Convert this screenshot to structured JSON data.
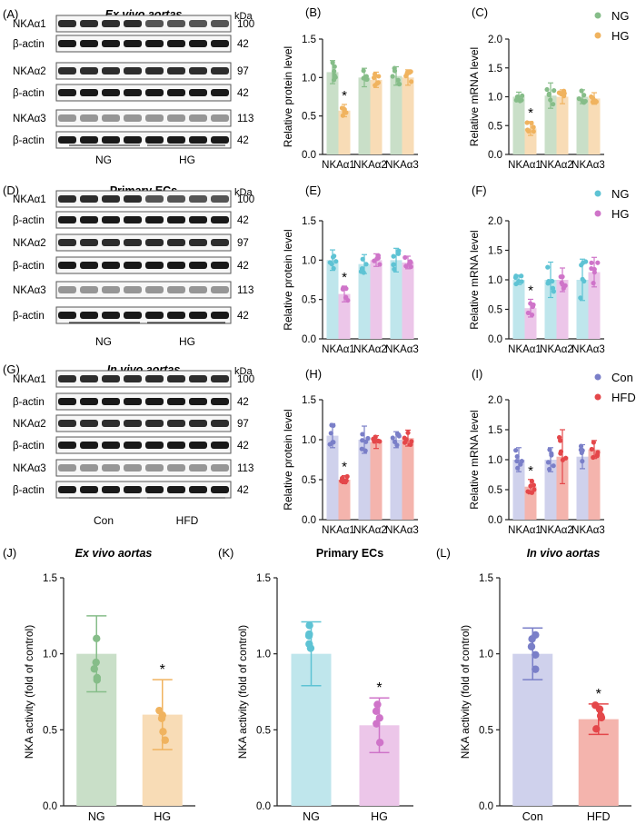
{
  "colors": {
    "green": "#86bd89",
    "green_light": "#c9dfc8",
    "orange": "#f0b35f",
    "orange_light": "#f8dcb6",
    "cyan": "#5ec3d4",
    "cyan_light": "#bfe6ec",
    "pink": "#cf74c9",
    "pink_light": "#ecc6e9",
    "purple": "#7a7fc8",
    "purple_light": "#cfd1ec",
    "red": "#e4474a",
    "red_light": "#f4b4ad",
    "axis": "#222222"
  },
  "kda_label": "kDa",
  "blots": [
    {
      "panel": "(A)",
      "title": "Ex vivo aortas",
      "title_italic": true,
      "rows": [
        {
          "label": "NKAα1",
          "kda": "100"
        },
        {
          "label": "β-actin",
          "kda": "42"
        },
        {
          "label": "NKAα2",
          "kda": "97"
        },
        {
          "label": "β-actin",
          "kda": "42"
        },
        {
          "label": "NKAα3",
          "kda": "113"
        },
        {
          "label": "β-actin",
          "kda": "42"
        }
      ],
      "groups": [
        "NG",
        "HG"
      ]
    },
    {
      "panel": "(D)",
      "title": "Primary ECs",
      "title_italic": false,
      "rows": [
        {
          "label": "NKAα1",
          "kda": "100"
        },
        {
          "label": "β-actin",
          "kda": "42"
        },
        {
          "label": "NKAα2",
          "kda": "97"
        },
        {
          "label": "β-actin",
          "kda": "42"
        },
        {
          "label": "NKAα3",
          "kda": "113"
        },
        {
          "label": "β-actin",
          "kda": "42"
        }
      ],
      "groups": [
        "NG",
        "HG"
      ]
    },
    {
      "panel": "(G)",
      "title": "In vivo aortas",
      "title_italic": true,
      "rows": [
        {
          "label": "NKAα1",
          "kda": "100"
        },
        {
          "label": "β-actin",
          "kda": "42"
        },
        {
          "label": "NKAα2",
          "kda": "97"
        },
        {
          "label": "β-actin",
          "kda": "42"
        },
        {
          "label": "NKAα3",
          "kda": "113"
        },
        {
          "label": "β-actin",
          "kda": "42"
        }
      ],
      "groups": [
        "Con",
        "HFD"
      ]
    }
  ],
  "chart_data": [
    {
      "panel": "(B)",
      "type": "bar",
      "ylabel": "Relative protein level",
      "ylim": [
        0,
        1.5
      ],
      "yticks": [
        "0.0",
        "0.5",
        "1.0",
        "1.5"
      ],
      "categories": [
        "NKAα1",
        "NKAα2",
        "NKAα3"
      ],
      "series": [
        {
          "name": "NG",
          "values": [
            1.07,
            1.0,
            1.02
          ],
          "errors": [
            0.15,
            0.12,
            0.12
          ]
        },
        {
          "name": "HG",
          "values": [
            0.57,
            0.97,
            1.0
          ],
          "errors": [
            0.08,
            0.1,
            0.1
          ]
        }
      ],
      "stars": [
        "*",
        "",
        ""
      ],
      "legend": []
    },
    {
      "panel": "(C)",
      "type": "bar",
      "ylabel": "Relative mRNA level",
      "ylim": [
        0,
        2.0
      ],
      "yticks": [
        "0.0",
        "0.5",
        "1.0",
        "1.5",
        "2.0"
      ],
      "categories": [
        "NKAα1",
        "NKAα2",
        "NKAα3"
      ],
      "series": [
        {
          "name": "NG",
          "values": [
            1.0,
            1.02,
            1.0
          ],
          "errors": [
            0.08,
            0.22,
            0.12
          ]
        },
        {
          "name": "HG",
          "values": [
            0.45,
            1.0,
            0.97
          ],
          "errors": [
            0.12,
            0.12,
            0.1
          ]
        }
      ],
      "stars": [
        "*",
        "",
        ""
      ],
      "legend": [
        "NG",
        "HG"
      ]
    },
    {
      "panel": "(E)",
      "type": "bar",
      "ylabel": "Relative protein level",
      "ylim": [
        0,
        1.5
      ],
      "yticks": [
        "0.0",
        "0.5",
        "1.0",
        "1.5"
      ],
      "categories": [
        "NKAα1",
        "NKAα2",
        "NKAα3"
      ],
      "series": [
        {
          "name": "NG",
          "values": [
            1.0,
            0.95,
            1.0
          ],
          "errors": [
            0.13,
            0.12,
            0.15
          ]
        },
        {
          "name": "HG",
          "values": [
            0.57,
            1.0,
            0.97
          ],
          "errors": [
            0.1,
            0.08,
            0.08
          ]
        }
      ],
      "stars": [
        "*",
        "",
        ""
      ],
      "legend": []
    },
    {
      "panel": "(F)",
      "type": "bar",
      "ylabel": "Relative mRNA level",
      "ylim": [
        0,
        2.0
      ],
      "yticks": [
        "0.0",
        "0.5",
        "1.0",
        "1.5",
        "2.0"
      ],
      "categories": [
        "NKAα1",
        "NKAα2",
        "NKAα3"
      ],
      "series": [
        {
          "name": "NG",
          "values": [
            1.0,
            1.0,
            1.0
          ],
          "errors": [
            0.08,
            0.3,
            0.35
          ]
        },
        {
          "name": "HG",
          "values": [
            0.52,
            1.0,
            1.13
          ],
          "errors": [
            0.15,
            0.2,
            0.25
          ]
        }
      ],
      "stars": [
        "*",
        "",
        ""
      ],
      "legend": [
        "NG",
        "HG"
      ]
    },
    {
      "panel": "(H)",
      "type": "bar",
      "ylabel": "Relative protein level",
      "ylim": [
        0,
        1.5
      ],
      "yticks": [
        "0.0",
        "0.5",
        "1.0",
        "1.5"
      ],
      "categories": [
        "NKAα1",
        "NKAα2",
        "NKAα3"
      ],
      "series": [
        {
          "name": "Con",
          "values": [
            1.05,
            1.0,
            1.0
          ],
          "errors": [
            0.15,
            0.17,
            0.1
          ]
        },
        {
          "name": "HFD",
          "values": [
            0.5,
            0.97,
            1.02
          ],
          "errors": [
            0.05,
            0.08,
            0.1
          ]
        }
      ],
      "stars": [
        "*",
        "",
        ""
      ],
      "legend": []
    },
    {
      "panel": "(I)",
      "type": "bar",
      "ylabel": "Relative mRNA level",
      "ylim": [
        0,
        2.0
      ],
      "yticks": [
        "0.0",
        "0.5",
        "1.0",
        "1.5",
        "2.0"
      ],
      "categories": [
        "NKAα1",
        "NKAα2",
        "NKAα3"
      ],
      "series": [
        {
          "name": "Con",
          "values": [
            1.0,
            1.0,
            1.05
          ],
          "errors": [
            0.2,
            0.2,
            0.2
          ]
        },
        {
          "name": "HFD",
          "values": [
            0.55,
            1.05,
            1.17
          ],
          "errors": [
            0.12,
            0.45,
            0.15
          ]
        }
      ],
      "stars": [
        "*",
        "",
        ""
      ],
      "legend": [
        "Con",
        "HFD"
      ]
    },
    {
      "panel": "(J)",
      "type": "bar",
      "title": "Ex vivo aortas",
      "title_italic": true,
      "ylabel": "NKA activity (fold of control)",
      "ylim": [
        0,
        1.5
      ],
      "yticks": [
        "0.0",
        "0.5",
        "1.0",
        "1.5"
      ],
      "categories": [
        "NG",
        "HG"
      ],
      "values": [
        1.0,
        0.6
      ],
      "errors": [
        0.25,
        0.23
      ],
      "stars": [
        "",
        "*"
      ]
    },
    {
      "panel": "(K)",
      "type": "bar",
      "title": "Primary ECs",
      "title_italic": false,
      "ylabel": "NKA activity (fold of control)",
      "ylim": [
        0,
        1.5
      ],
      "yticks": [
        "0.0",
        "0.5",
        "1.0",
        "1.5"
      ],
      "categories": [
        "NG",
        "HG"
      ],
      "values": [
        1.0,
        0.53
      ],
      "errors": [
        0.21,
        0.18
      ],
      "stars": [
        "",
        "*"
      ]
    },
    {
      "panel": "(L)",
      "type": "bar",
      "title": "In vivo aortas",
      "title_italic": true,
      "ylabel": "NKA activity (fold of control)",
      "ylim": [
        0,
        1.5
      ],
      "yticks": [
        "0.0",
        "0.5",
        "1.0",
        "1.5"
      ],
      "categories": [
        "Con",
        "HFD"
      ],
      "values": [
        1.0,
        0.57
      ],
      "errors": [
        0.17,
        0.1
      ],
      "stars": [
        "",
        "*"
      ]
    }
  ]
}
